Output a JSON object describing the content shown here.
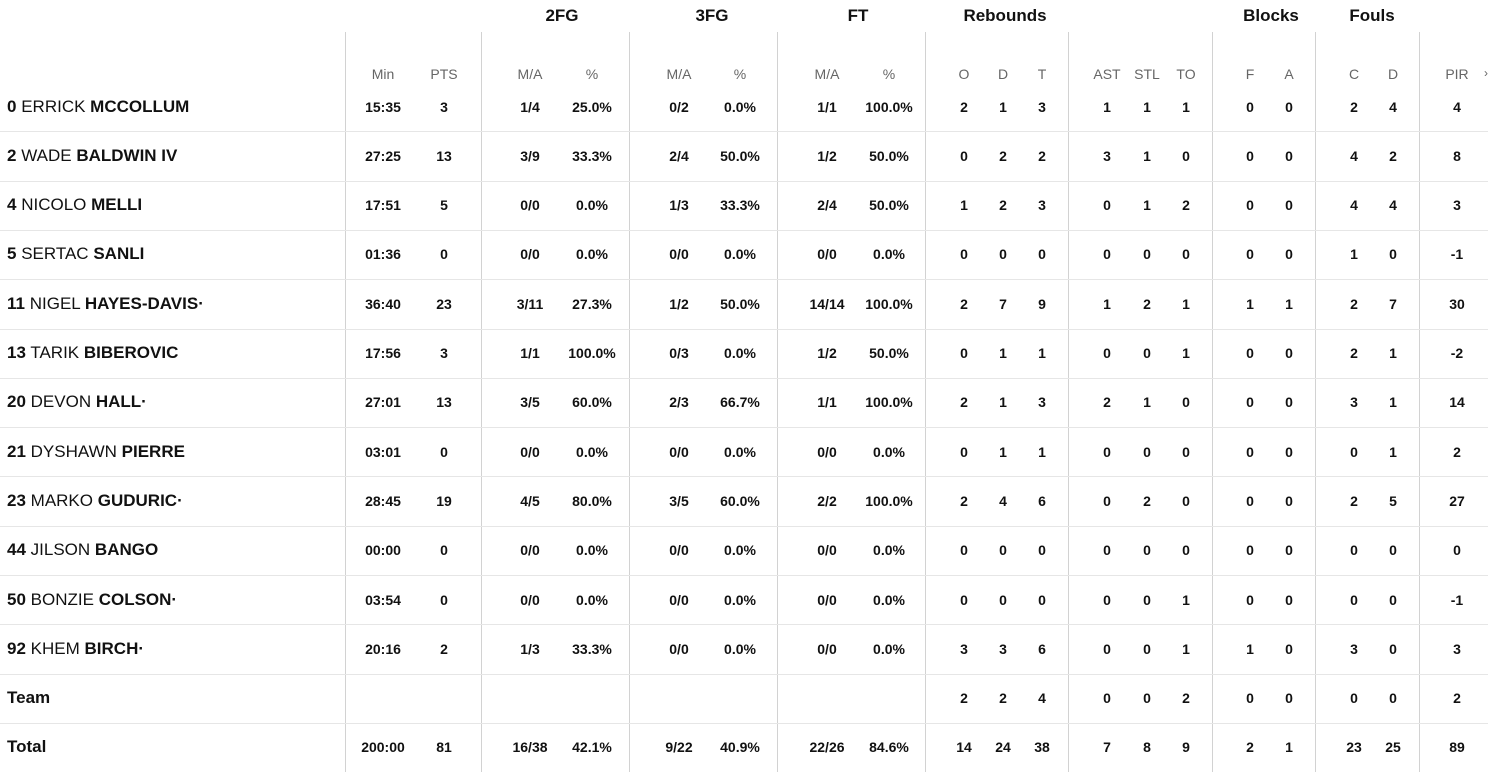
{
  "groups": {
    "fg2": "2FG",
    "fg3": "3FG",
    "ft": "FT",
    "rebounds": "Rebounds",
    "blocks": "Blocks",
    "fouls": "Fouls"
  },
  "subheaders": {
    "min": "Min",
    "pts": "PTS",
    "fg2_ma": "M/A",
    "fg2_pct": "%",
    "fg3_ma": "M/A",
    "fg3_pct": "%",
    "ft_ma": "M/A",
    "ft_pct": "%",
    "reb_o": "O",
    "reb_d": "D",
    "reb_t": "T",
    "ast": "AST",
    "stl": "STL",
    "to": "TO",
    "blk_f": "F",
    "blk_a": "A",
    "foul_c": "C",
    "foul_d": "D",
    "pir": "PIR"
  },
  "rows": [
    {
      "num": "0",
      "first": "ERRICK",
      "last": "MCCOLLUM",
      "min": "15:35",
      "pts": "3",
      "fg2": "1/4",
      "fg2p": "25.0%",
      "fg3": "0/2",
      "fg3p": "0.0%",
      "ft": "1/1",
      "ftp": "100.0%",
      "o": "2",
      "d": "1",
      "t": "3",
      "ast": "1",
      "stl": "1",
      "to": "1",
      "bf": "0",
      "ba": "0",
      "fc": "2",
      "fd": "4",
      "pir": "4"
    },
    {
      "num": "2",
      "first": "WADE",
      "last": "BALDWIN IV",
      "min": "27:25",
      "pts": "13",
      "fg2": "3/9",
      "fg2p": "33.3%",
      "fg3": "2/4",
      "fg3p": "50.0%",
      "ft": "1/2",
      "ftp": "50.0%",
      "o": "0",
      "d": "2",
      "t": "2",
      "ast": "3",
      "stl": "1",
      "to": "0",
      "bf": "0",
      "ba": "0",
      "fc": "4",
      "fd": "2",
      "pir": "8"
    },
    {
      "num": "4",
      "first": "NICOLO",
      "last": "MELLI",
      "min": "17:51",
      "pts": "5",
      "fg2": "0/0",
      "fg2p": "0.0%",
      "fg3": "1/3",
      "fg3p": "33.3%",
      "ft": "2/4",
      "ftp": "50.0%",
      "o": "1",
      "d": "2",
      "t": "3",
      "ast": "0",
      "stl": "1",
      "to": "2",
      "bf": "0",
      "ba": "0",
      "fc": "4",
      "fd": "4",
      "pir": "3"
    },
    {
      "num": "5",
      "first": "SERTAC",
      "last": "SANLI",
      "min": "01:36",
      "pts": "0",
      "fg2": "0/0",
      "fg2p": "0.0%",
      "fg3": "0/0",
      "fg3p": "0.0%",
      "ft": "0/0",
      "ftp": "0.0%",
      "o": "0",
      "d": "0",
      "t": "0",
      "ast": "0",
      "stl": "0",
      "to": "0",
      "bf": "0",
      "ba": "0",
      "fc": "1",
      "fd": "0",
      "pir": "-1"
    },
    {
      "num": "11",
      "first": "NIGEL",
      "last": "HAYES-DAVIS·",
      "min": "36:40",
      "pts": "23",
      "fg2": "3/11",
      "fg2p": "27.3%",
      "fg3": "1/2",
      "fg3p": "50.0%",
      "ft": "14/14",
      "ftp": "100.0%",
      "o": "2",
      "d": "7",
      "t": "9",
      "ast": "1",
      "stl": "2",
      "to": "1",
      "bf": "1",
      "ba": "1",
      "fc": "2",
      "fd": "7",
      "pir": "30"
    },
    {
      "num": "13",
      "first": "TARIK",
      "last": "BIBEROVIC",
      "min": "17:56",
      "pts": "3",
      "fg2": "1/1",
      "fg2p": "100.0%",
      "fg3": "0/3",
      "fg3p": "0.0%",
      "ft": "1/2",
      "ftp": "50.0%",
      "o": "0",
      "d": "1",
      "t": "1",
      "ast": "0",
      "stl": "0",
      "to": "1",
      "bf": "0",
      "ba": "0",
      "fc": "2",
      "fd": "1",
      "pir": "-2"
    },
    {
      "num": "20",
      "first": "DEVON",
      "last": "HALL·",
      "min": "27:01",
      "pts": "13",
      "fg2": "3/5",
      "fg2p": "60.0%",
      "fg3": "2/3",
      "fg3p": "66.7%",
      "ft": "1/1",
      "ftp": "100.0%",
      "o": "2",
      "d": "1",
      "t": "3",
      "ast": "2",
      "stl": "1",
      "to": "0",
      "bf": "0",
      "ba": "0",
      "fc": "3",
      "fd": "1",
      "pir": "14"
    },
    {
      "num": "21",
      "first": "DYSHAWN",
      "last": "PIERRE",
      "min": "03:01",
      "pts": "0",
      "fg2": "0/0",
      "fg2p": "0.0%",
      "fg3": "0/0",
      "fg3p": "0.0%",
      "ft": "0/0",
      "ftp": "0.0%",
      "o": "0",
      "d": "1",
      "t": "1",
      "ast": "0",
      "stl": "0",
      "to": "0",
      "bf": "0",
      "ba": "0",
      "fc": "0",
      "fd": "1",
      "pir": "2"
    },
    {
      "num": "23",
      "first": "MARKO",
      "last": "GUDURIC·",
      "min": "28:45",
      "pts": "19",
      "fg2": "4/5",
      "fg2p": "80.0%",
      "fg3": "3/5",
      "fg3p": "60.0%",
      "ft": "2/2",
      "ftp": "100.0%",
      "o": "2",
      "d": "4",
      "t": "6",
      "ast": "0",
      "stl": "2",
      "to": "0",
      "bf": "0",
      "ba": "0",
      "fc": "2",
      "fd": "5",
      "pir": "27"
    },
    {
      "num": "44",
      "first": "JILSON",
      "last": "BANGO",
      "min": "00:00",
      "pts": "0",
      "fg2": "0/0",
      "fg2p": "0.0%",
      "fg3": "0/0",
      "fg3p": "0.0%",
      "ft": "0/0",
      "ftp": "0.0%",
      "o": "0",
      "d": "0",
      "t": "0",
      "ast": "0",
      "stl": "0",
      "to": "0",
      "bf": "0",
      "ba": "0",
      "fc": "0",
      "fd": "0",
      "pir": "0"
    },
    {
      "num": "50",
      "first": "BONZIE",
      "last": "COLSON·",
      "min": "03:54",
      "pts": "0",
      "fg2": "0/0",
      "fg2p": "0.0%",
      "fg3": "0/0",
      "fg3p": "0.0%",
      "ft": "0/0",
      "ftp": "0.0%",
      "o": "0",
      "d": "0",
      "t": "0",
      "ast": "0",
      "stl": "0",
      "to": "1",
      "bf": "0",
      "ba": "0",
      "fc": "0",
      "fd": "0",
      "pir": "-1"
    },
    {
      "num": "92",
      "first": "KHEM",
      "last": "BIRCH·",
      "min": "20:16",
      "pts": "2",
      "fg2": "1/3",
      "fg2p": "33.3%",
      "fg3": "0/0",
      "fg3p": "0.0%",
      "ft": "0/0",
      "ftp": "0.0%",
      "o": "3",
      "d": "3",
      "t": "6",
      "ast": "0",
      "stl": "0",
      "to": "1",
      "bf": "1",
      "ba": "0",
      "fc": "3",
      "fd": "0",
      "pir": "3"
    },
    {
      "num": "",
      "first": "",
      "last": "Team",
      "min": "",
      "pts": "",
      "fg2": "",
      "fg2p": "",
      "fg3": "",
      "fg3p": "",
      "ft": "",
      "ftp": "",
      "o": "2",
      "d": "2",
      "t": "4",
      "ast": "0",
      "stl": "0",
      "to": "2",
      "bf": "0",
      "ba": "0",
      "fc": "0",
      "fd": "0",
      "pir": "2"
    },
    {
      "num": "",
      "first": "",
      "last": "Total",
      "min": "200:00",
      "pts": "81",
      "fg2": "16/38",
      "fg2p": "42.1%",
      "fg3": "9/22",
      "fg3p": "40.9%",
      "ft": "22/26",
      "ftp": "84.6%",
      "o": "14",
      "d": "24",
      "t": "38",
      "ast": "7",
      "stl": "8",
      "to": "9",
      "bf": "2",
      "ba": "1",
      "fc": "23",
      "fd": "25",
      "pir": "89"
    }
  ]
}
